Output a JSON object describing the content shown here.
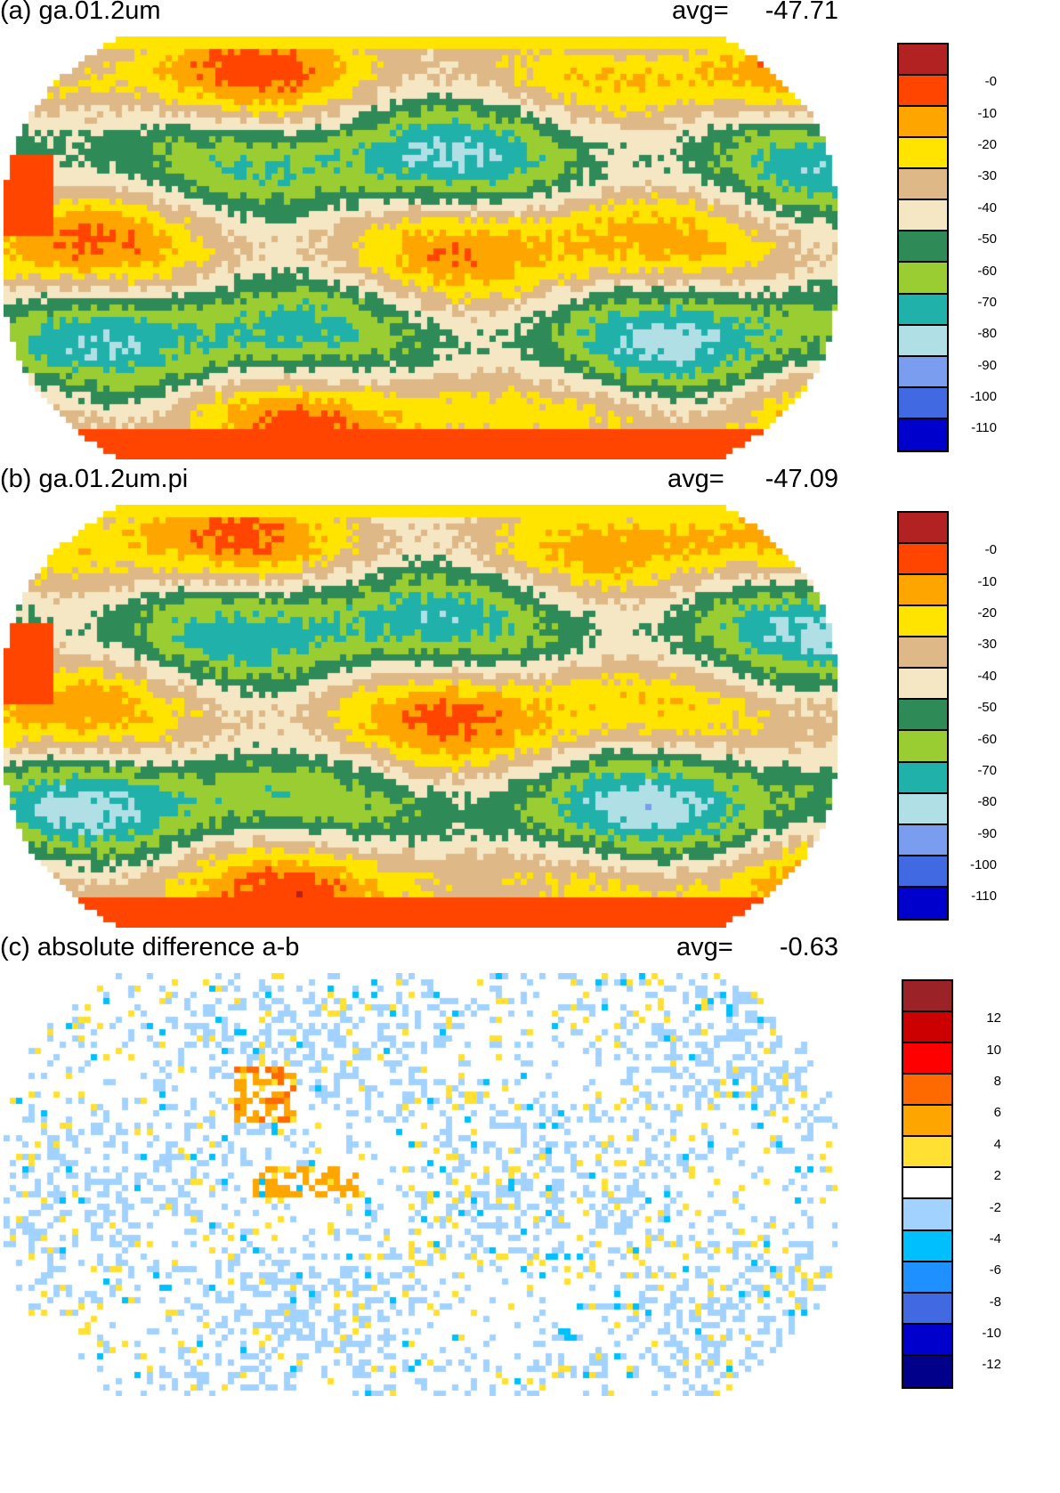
{
  "panels": [
    {
      "title": "(a) ga.01.2um",
      "avg_label": "avg=",
      "avg": "-47.71",
      "kind": "abs",
      "offset": 0
    },
    {
      "title": "(b) ga.01.2um.pi",
      "avg_label": "avg=",
      "avg": "-47.09",
      "kind": "abs",
      "offset": 0.6
    },
    {
      "title": "(c) absolute difference a-b",
      "avg_label": "avg=",
      "avg": "-0.63",
      "kind": "diff",
      "offset": 0
    }
  ],
  "colorbars": {
    "abs": {
      "colors": [
        "#b22222",
        "#ff4500",
        "#ffa500",
        "#ffe400",
        "#deb887",
        "#f5e6c4",
        "#2e8b57",
        "#9acd32",
        "#20b2aa",
        "#b0e0e6",
        "#7b9df0",
        "#4169e1",
        "#0000cd"
      ],
      "labels": [
        "-0",
        "-10",
        "-20",
        "-30",
        "-40",
        "-50",
        "-60",
        "-70",
        "-80",
        "-90",
        "-100",
        "-110"
      ]
    },
    "diff": {
      "colors": [
        "#9b2226",
        "#cc0000",
        "#ff0000",
        "#ff6a00",
        "#ffa500",
        "#ffe033",
        "#ffffff",
        "#a2d2ff",
        "#00bfff",
        "#1e90ff",
        "#4169e1",
        "#0000cd",
        "#00008b"
      ],
      "labels": [
        "12",
        "10",
        "8",
        "6",
        "4",
        "2",
        "-2",
        "-4",
        "-6",
        "-8",
        "-10",
        "-12"
      ]
    }
  }
}
